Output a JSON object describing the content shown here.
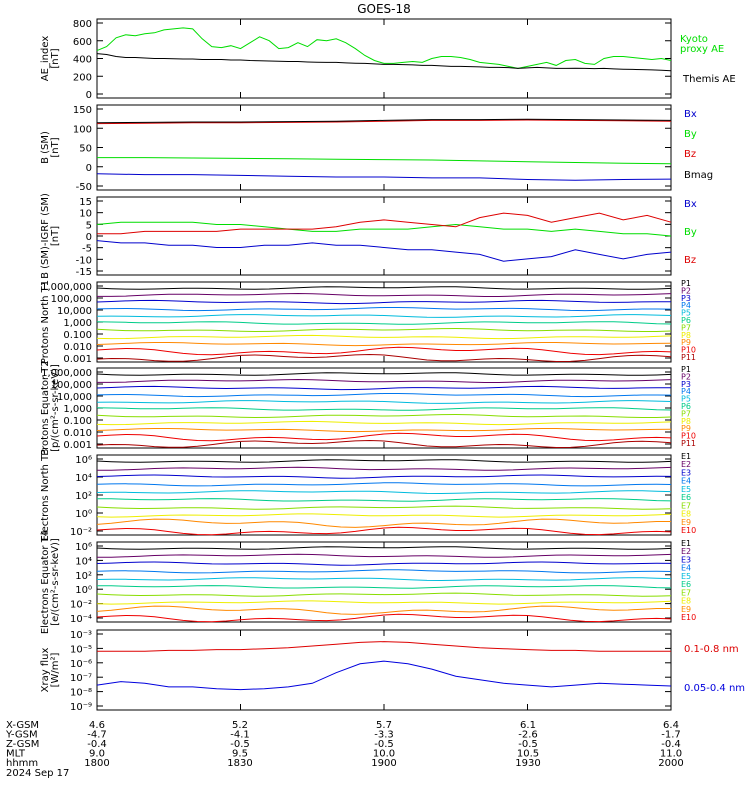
{
  "title": "GOES-18",
  "colors": {
    "kyoto": "#00dd00",
    "themis": "#000000",
    "bx": "#0000cc",
    "by": "#00dd00",
    "bz": "#dd0000",
    "bmag": "#000000",
    "xray_long": "#dd0000",
    "xray_short": "#0000dd",
    "channel_colors": [
      "#000000",
      "#660066",
      "#0000cc",
      "#0077ee",
      "#00bbdd",
      "#00cc88",
      "#88dd00",
      "#eeee00",
      "#ff8800",
      "#ee0000",
      "#aa0000"
    ]
  },
  "chart_data": [
    {
      "type": "line",
      "ylabel": "AE_index [nT]",
      "ylim": [
        0,
        800
      ],
      "yticks": [
        "800",
        "600",
        "400",
        "200",
        "0"
      ],
      "x": [
        0,
        2,
        4,
        6,
        8,
        10,
        12,
        14,
        16,
        18,
        20,
        22,
        24,
        26,
        28,
        30,
        32,
        34,
        36,
        38,
        40,
        42,
        44,
        46,
        48,
        50,
        52,
        54,
        56,
        58,
        60,
        62,
        64,
        66,
        68,
        70,
        72,
        74,
        76,
        78,
        80,
        82,
        84,
        86,
        88,
        90,
        92,
        94,
        96,
        98,
        100,
        102,
        104,
        106,
        108,
        110,
        112,
        114,
        116,
        118,
        120
      ],
      "series": [
        {
          "name": "Kyoto proxy AE",
          "color_key": "kyoto",
          "values": [
            480,
            520,
            610,
            640,
            630,
            650,
            660,
            690,
            700,
            710,
            700,
            600,
            520,
            510,
            530,
            500,
            560,
            620,
            580,
            500,
            510,
            560,
            520,
            590,
            580,
            600,
            560,
            500,
            430,
            380,
            350,
            350,
            360,
            370,
            360,
            400,
            420,
            420,
            410,
            390,
            360,
            350,
            340,
            320,
            300,
            320,
            340,
            360,
            330,
            380,
            390,
            350,
            340,
            400,
            420,
            420,
            410,
            400,
            390,
            400,
            380
          ]
        },
        {
          "name": "Themis AE",
          "color_key": "themis",
          "values": [
            450,
            440,
            420,
            410,
            410,
            405,
            400,
            400,
            398,
            395,
            395,
            390,
            390,
            390,
            385,
            385,
            380,
            378,
            375,
            372,
            370,
            370,
            365,
            362,
            360,
            360,
            355,
            352,
            350,
            345,
            340,
            340,
            338,
            335,
            330,
            330,
            325,
            320,
            320,
            318,
            315,
            310,
            310,
            308,
            300,
            305,
            310,
            305,
            300,
            300,
            302,
            300,
            298,
            300,
            295,
            292,
            290,
            288,
            285,
            280,
            275
          ]
        }
      ]
    },
    {
      "type": "line",
      "ylabel": "B (SM) [nT]",
      "ylim": [
        -60,
        150
      ],
      "yticks": [
        "150",
        "100",
        "50",
        "0",
        "-50"
      ],
      "x": [
        0,
        10,
        20,
        30,
        40,
        50,
        60,
        70,
        80,
        90,
        100,
        110,
        120
      ],
      "series": [
        {
          "name": "Bx",
          "color_key": "bx",
          "values": [
            -20,
            -22,
            -22,
            -24,
            -26,
            -28,
            -28,
            -30,
            -30,
            -34,
            -36,
            -34,
            -33
          ]
        },
        {
          "name": "By",
          "color_key": "by",
          "values": [
            20,
            20,
            19,
            18,
            17,
            16,
            15,
            14,
            12,
            10,
            8,
            6,
            5
          ]
        },
        {
          "name": "Bz",
          "color_key": "bz",
          "values": [
            104,
            105,
            106,
            106,
            107,
            108,
            110,
            112,
            112,
            113,
            112,
            111,
            110
          ]
        },
        {
          "name": "Bmag",
          "color_key": "bmag",
          "values": [
            106,
            107,
            108,
            108,
            109,
            110,
            112,
            114,
            114,
            115,
            114,
            113,
            112
          ]
        }
      ]
    },
    {
      "type": "line",
      "ylabel": "B (SM)-IGRF (SM) [nT]",
      "ylim": [
        -17,
        17
      ],
      "yticks": [
        "15",
        "10",
        "5",
        "0",
        "-5",
        "-10",
        "-15"
      ],
      "x": [
        0,
        5,
        10,
        15,
        20,
        25,
        30,
        35,
        40,
        45,
        50,
        55,
        60,
        65,
        70,
        75,
        80,
        85,
        90,
        95,
        100,
        105,
        110,
        115,
        120
      ],
      "series": [
        {
          "name": "Bx",
          "color_key": "bx",
          "values": [
            -2,
            -3,
            -3,
            -4,
            -4,
            -5,
            -5,
            -4,
            -4,
            -3,
            -4,
            -4,
            -5,
            -6,
            -6,
            -7,
            -8,
            -11,
            -10,
            -9,
            -6,
            -8,
            -10,
            -8,
            -7
          ]
        },
        {
          "name": "By",
          "color_key": "by",
          "values": [
            5,
            6,
            6,
            6,
            6,
            5,
            5,
            4,
            3,
            2,
            2,
            3,
            3,
            3,
            4,
            5,
            4,
            3,
            3,
            2,
            3,
            2,
            1,
            1,
            0
          ]
        },
        {
          "name": "Bz",
          "color_key": "bz",
          "values": [
            1,
            1,
            2,
            2,
            2,
            2,
            3,
            3,
            3,
            3,
            4,
            6,
            7,
            6,
            5,
            4,
            8,
            10,
            9,
            6,
            8,
            10,
            7,
            9,
            6
          ]
        }
      ]
    },
    {
      "type": "line",
      "ylabel": "Protons North T1",
      "yscale": "log",
      "yticks": [
        "1,000,000",
        "100,000",
        "10,000",
        "1,000",
        "0.100",
        "0.010",
        "0.001"
      ],
      "channels": [
        "P1",
        "P2",
        "P3",
        "P4",
        "P5",
        "P6",
        "P7",
        "P8",
        "P9",
        "P10",
        "P11"
      ]
    },
    {
      "type": "line",
      "ylabel": "Protons Equator T2 [p/(cm²-s-sr-keV)]",
      "yscale": "log",
      "yticks": [
        "1,000,000",
        "100,000",
        "10,000",
        "1,000",
        "0.100",
        "0.010",
        "0.001"
      ],
      "channels": [
        "P1",
        "P2",
        "P3",
        "P4",
        "P5",
        "P6",
        "P7",
        "P8",
        "P9",
        "P10",
        "P11"
      ]
    },
    {
      "type": "line",
      "ylabel": "Electrons North T3",
      "yscale": "log",
      "yticks": [
        "10⁶",
        "10⁴",
        "10²",
        "10⁰",
        "10⁻²"
      ],
      "channels": [
        "E1",
        "E2",
        "E3",
        "E4",
        "E5",
        "E6",
        "E7",
        "E8",
        "E9",
        "E10"
      ]
    },
    {
      "type": "line",
      "ylabel": "Electrons Equator T4 [e/(cm²-s-sr-keV)]",
      "yscale": "log",
      "yticks": [
        "10⁶",
        "10⁴",
        "10²",
        "10⁰",
        "10⁻²",
        "10⁻⁴"
      ],
      "channels": [
        "E1",
        "E2",
        "E3",
        "E4",
        "E5",
        "E6",
        "E7",
        "E8",
        "E9",
        "E10"
      ]
    },
    {
      "type": "line",
      "ylabel": "Xray flux [W/m²]",
      "yscale": "log",
      "yticks": [
        "10⁻³",
        "10⁻⁵",
        "10⁻⁶",
        "10⁻⁷",
        "10⁻⁸",
        "10⁻⁹"
      ],
      "x": [
        0,
        5,
        10,
        15,
        20,
        25,
        30,
        35,
        40,
        45,
        50,
        55,
        60,
        65,
        70,
        75,
        80,
        85,
        90,
        95,
        100,
        105,
        110,
        115,
        120
      ],
      "series": [
        {
          "name": "0.1-0.8 nm",
          "color_key": "xray_long",
          "values": [
            -5.8,
            -5.8,
            -5.8,
            -5.75,
            -5.75,
            -5.7,
            -5.7,
            -5.65,
            -5.6,
            -5.5,
            -5.4,
            -5.3,
            -5.25,
            -5.3,
            -5.4,
            -5.5,
            -5.6,
            -5.65,
            -5.7,
            -5.75,
            -5.75,
            -5.8,
            -5.8,
            -5.8,
            -5.8
          ]
        },
        {
          "name": "0.05-0.4 nm",
          "color_key": "xray_short",
          "values": [
            -7.7,
            -7.5,
            -7.6,
            -7.8,
            -7.8,
            -7.9,
            -7.95,
            -7.9,
            -7.8,
            -7.6,
            -7.0,
            -6.5,
            -6.35,
            -6.5,
            -6.8,
            -7.2,
            -7.4,
            -7.6,
            -7.7,
            -7.8,
            -7.7,
            -7.6,
            -7.65,
            -7.7,
            -7.75
          ]
        }
      ]
    }
  ],
  "ephemeris": {
    "labels": [
      "X-GSM",
      "Y-GSM",
      "Z-GSM",
      "MLT",
      "hhmm"
    ],
    "columns": [
      [
        "4.6",
        "-4.7",
        "-0.4",
        "9.0",
        "1800"
      ],
      [
        "5.2",
        "-4.1",
        "-0.5",
        "9.5",
        "1830"
      ],
      [
        "5.7",
        "-3.3",
        "-0.5",
        "10.0",
        "1900"
      ],
      [
        "6.1",
        "-2.6",
        "-0.5",
        "10.5",
        "1930"
      ],
      [
        "6.4",
        "-1.7",
        "-0.4",
        "11.0",
        "2000"
      ]
    ],
    "date": "2024 Sep 17"
  }
}
